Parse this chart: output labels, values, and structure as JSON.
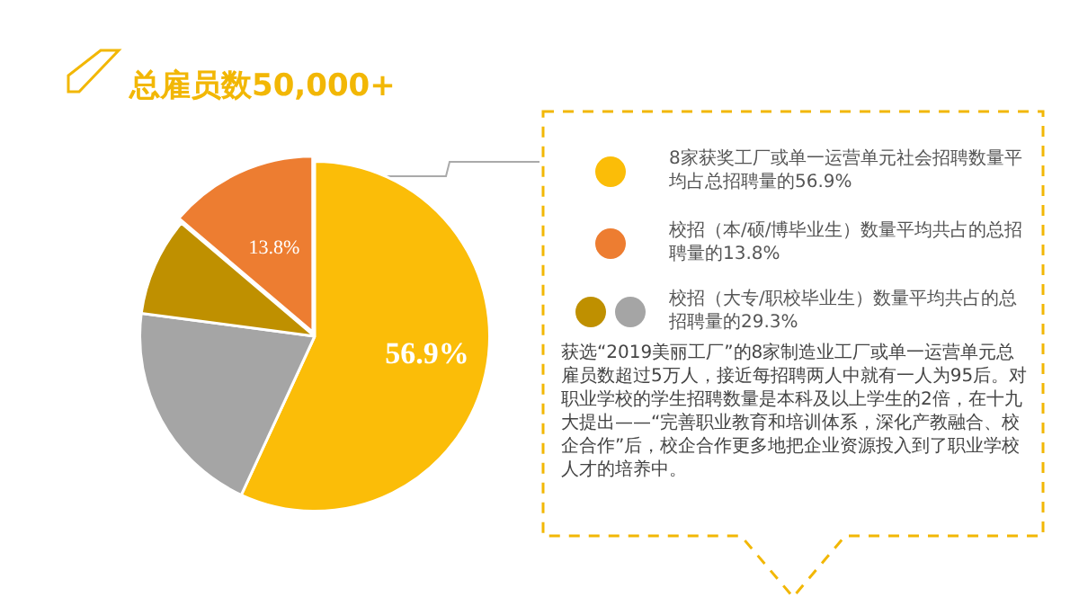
{
  "chart_data": {
    "type": "pie",
    "title": "总雇员数50,000+",
    "categories": [
      null,
      null,
      null,
      null
    ],
    "values": [
      56.9,
      20.2,
      9.1,
      13.8
    ],
    "colors": [
      "#fbbd08",
      "#a5a5a5",
      "#bf9000",
      "#ed7d31"
    ],
    "value_labels": [
      "56.9%",
      null,
      null,
      "13.8%"
    ],
    "annotations": [
      "8家获奖工厂或单一运营单元社会招聘数量平均占总招聘量的56.9%",
      "校招（本/硕/博毕业生）数量平均共占的总招聘量的13.8%",
      "校招（大专/职校毕业生）数量平均共占的总招聘量的29.3%",
      "获选“2019美丽工厂”的8家制造业工厂或单一运营单元总雇员数超过5万人，接近每招聘两人中就有一人为95后。对职业学校的学生招聘数量是本科及以上学生的2倍，在十九大提出——“完善职业教育和培训体系，深化产教融合、校企合作”后，校企合作更多地把企业资源投入到了职业学校人才的培养中。"
    ]
  }
}
